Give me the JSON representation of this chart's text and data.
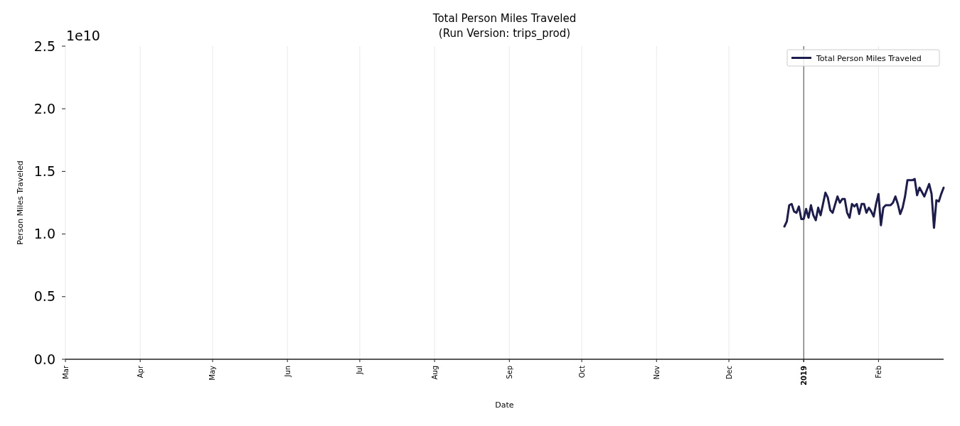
{
  "chart_data": {
    "type": "line",
    "title": "Total Person Miles Traveled",
    "subtitle": "(Run Version: trips_prod)",
    "xlabel": "Date",
    "ylabel": "Person Miles Traveled",
    "annotations": [
      "1e10"
    ],
    "x": [
      "2018-12-24",
      "2018-12-25",
      "2018-12-26",
      "2018-12-27",
      "2018-12-28",
      "2018-12-29",
      "2018-12-30",
      "2018-12-31",
      "2019-01-01",
      "2019-01-02",
      "2019-01-03",
      "2019-01-04",
      "2019-01-05",
      "2019-01-06",
      "2019-01-07",
      "2019-01-08",
      "2019-01-09",
      "2019-01-10",
      "2019-01-11",
      "2019-01-12",
      "2019-01-13",
      "2019-01-15",
      "2019-01-16",
      "2019-01-17",
      "2019-01-18",
      "2019-01-19",
      "2019-01-20",
      "2019-01-21",
      "2019-01-22",
      "2019-01-23",
      "2019-01-24",
      "2019-01-25",
      "2019-01-26",
      "2019-01-27",
      "2019-01-28",
      "2019-01-29",
      "2019-01-30",
      "2019-01-31",
      "2019-02-01",
      "2019-02-02",
      "2019-02-03",
      "2019-02-04",
      "2019-02-06",
      "2019-02-07",
      "2019-02-08",
      "2019-02-09",
      "2019-02-10",
      "2019-02-11",
      "2019-02-12",
      "2019-02-13",
      "2019-02-14",
      "2019-02-15",
      "2019-02-16",
      "2019-02-17",
      "2019-02-18",
      "2019-02-20",
      "2019-02-22",
      "2019-02-23",
      "2019-02-24",
      "2019-02-25",
      "2019-02-26",
      "2019-02-27",
      "2019-02-28"
    ],
    "series": [
      {
        "name": "Total Person Miles Traveled",
        "color": "#1c1c4e",
        "values": [
          1.06,
          1.1,
          1.23,
          1.24,
          1.18,
          1.17,
          1.22,
          1.12,
          1.12,
          1.2,
          1.13,
          1.23,
          1.15,
          1.11,
          1.21,
          1.15,
          1.24,
          1.33,
          1.29,
          1.19,
          1.17,
          1.3,
          1.25,
          1.28,
          1.28,
          1.17,
          1.13,
          1.24,
          1.22,
          1.24,
          1.16,
          1.24,
          1.24,
          1.17,
          1.21,
          1.18,
          1.14,
          1.24,
          1.32,
          1.07,
          1.21,
          1.23,
          1.23,
          1.25,
          1.3,
          1.24,
          1.16,
          1.21,
          1.3,
          1.43,
          1.43,
          1.43,
          1.44,
          1.31,
          1.37,
          1.3,
          1.4,
          1.32,
          1.05,
          1.27,
          1.26,
          1.32,
          1.37
        ]
      }
    ],
    "xlim": [
      "2018-03-01",
      "2019-02-28"
    ],
    "xticks": [
      {
        "value": "2018-03-01",
        "label": "Mar"
      },
      {
        "value": "2018-04-01",
        "label": "Apr"
      },
      {
        "value": "2018-05-01",
        "label": "May"
      },
      {
        "value": "2018-06-01",
        "label": "Jun"
      },
      {
        "value": "2018-07-01",
        "label": "Jul"
      },
      {
        "value": "2018-08-01",
        "label": "Aug"
      },
      {
        "value": "2018-09-01",
        "label": "Sep"
      },
      {
        "value": "2018-10-01",
        "label": "Oct"
      },
      {
        "value": "2018-11-01",
        "label": "Nov"
      },
      {
        "value": "2018-12-01",
        "label": "Dec"
      },
      {
        "value": "2019-01-01",
        "label": "2019"
      },
      {
        "value": "2019-02-01",
        "label": "Feb"
      }
    ],
    "ylim": [
      0,
      2.5
    ],
    "yticks": [
      {
        "value": 0,
        "label": "0.0"
      },
      0.5,
      {
        "value": 1,
        "label": "1.0"
      },
      1.5,
      {
        "value": 2,
        "label": "2.0"
      },
      2.5
    ],
    "grid": "x",
    "legend": "top right",
    "ref_lines": [
      {
        "axis": "x",
        "value": "2019-01-01",
        "color": "#333333"
      }
    ]
  }
}
